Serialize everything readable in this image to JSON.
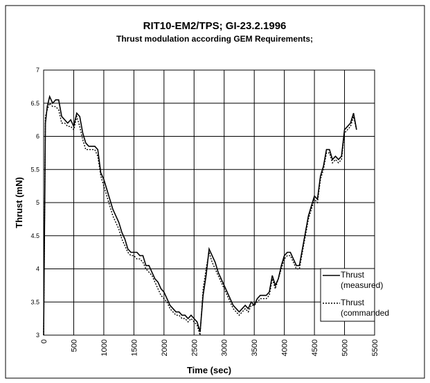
{
  "chart_data": {
    "type": "line",
    "title": "RIT10-EM2/TPS; GI-23.2.1996",
    "subtitle": "Thrust modulation according GEM Requirements;",
    "x_label": "Time (sec)",
    "y_label": "Thrust (mN)",
    "xlim": [
      0,
      5500
    ],
    "xticks": [
      0,
      500,
      1000,
      1500,
      2000,
      2500,
      3000,
      3500,
      4000,
      4500,
      5000,
      5500
    ],
    "ylim": [
      3,
      7
    ],
    "yticks": [
      3,
      3.5,
      4,
      4.5,
      5,
      5.5,
      6,
      6.5,
      7
    ],
    "grid": true,
    "legend": "lower right",
    "x": [
      0,
      30,
      60,
      100,
      150,
      200,
      250,
      300,
      350,
      400,
      450,
      500,
      550,
      600,
      650,
      700,
      750,
      800,
      850,
      900,
      950,
      1000,
      1050,
      1100,
      1150,
      1200,
      1250,
      1300,
      1350,
      1400,
      1450,
      1500,
      1550,
      1600,
      1650,
      1700,
      1750,
      1800,
      1850,
      1900,
      1950,
      2000,
      2050,
      2100,
      2150,
      2200,
      2250,
      2300,
      2350,
      2400,
      2450,
      2500,
      2550,
      2600,
      2650,
      2700,
      2750,
      2800,
      2850,
      2900,
      2950,
      3000,
      3050,
      3100,
      3150,
      3200,
      3250,
      3300,
      3350,
      3400,
      3450,
      3500,
      3550,
      3600,
      3650,
      3700,
      3750,
      3800,
      3850,
      3900,
      3950,
      4000,
      4050,
      4100,
      4150,
      4200,
      4250,
      4300,
      4350,
      4400,
      4450,
      4500,
      4550,
      4600,
      4650,
      4700,
      4750,
      4800,
      4850,
      4900,
      4950,
      5000,
      5050,
      5100,
      5150,
      5200
    ],
    "series": [
      {
        "name": "Thrust (measured)",
        "color": "#000000",
        "line_style": "solid",
        "values": [
          3.0,
          6.2,
          6.45,
          6.6,
          6.5,
          6.55,
          6.55,
          6.3,
          6.25,
          6.2,
          6.25,
          6.15,
          6.35,
          6.3,
          6.05,
          5.9,
          5.85,
          5.85,
          5.85,
          5.8,
          5.45,
          5.35,
          5.2,
          5.05,
          4.9,
          4.8,
          4.7,
          4.55,
          4.45,
          4.3,
          4.25,
          4.25,
          4.25,
          4.2,
          4.2,
          4.05,
          4.05,
          3.95,
          3.85,
          3.8,
          3.7,
          3.65,
          3.55,
          3.45,
          3.4,
          3.35,
          3.35,
          3.3,
          3.3,
          3.25,
          3.3,
          3.25,
          3.2,
          3.05,
          3.6,
          3.9,
          4.3,
          4.2,
          4.1,
          3.95,
          3.85,
          3.75,
          3.65,
          3.55,
          3.45,
          3.4,
          3.35,
          3.4,
          3.45,
          3.4,
          3.5,
          3.45,
          3.55,
          3.6,
          3.6,
          3.6,
          3.65,
          3.9,
          3.75,
          3.85,
          4.05,
          4.2,
          4.25,
          4.25,
          4.15,
          4.05,
          4.05,
          4.3,
          4.55,
          4.8,
          4.95,
          5.1,
          5.05,
          5.4,
          5.55,
          5.8,
          5.8,
          5.65,
          5.7,
          5.65,
          5.7,
          6.1,
          6.15,
          6.2,
          6.35,
          6.1
        ]
      },
      {
        "name": "Thrust (commanded",
        "color": "#000000",
        "line_style": "dotted",
        "values": [
          3.0,
          6.3,
          6.4,
          6.5,
          6.45,
          6.45,
          6.4,
          6.2,
          6.2,
          6.15,
          6.15,
          6.1,
          6.3,
          6.15,
          5.95,
          5.8,
          5.8,
          5.8,
          5.8,
          5.7,
          5.4,
          5.25,
          5.1,
          4.95,
          4.8,
          4.7,
          4.6,
          4.45,
          4.35,
          4.25,
          4.2,
          4.2,
          4.15,
          4.15,
          4.1,
          4.0,
          3.95,
          3.9,
          3.8,
          3.7,
          3.6,
          3.55,
          3.5,
          3.4,
          3.35,
          3.3,
          3.3,
          3.25,
          3.25,
          3.2,
          3.25,
          3.2,
          3.15,
          3.0,
          3.7,
          4.0,
          4.25,
          4.1,
          4.0,
          3.9,
          3.8,
          3.7,
          3.6,
          3.5,
          3.4,
          3.35,
          3.3,
          3.35,
          3.4,
          3.35,
          3.45,
          3.45,
          3.5,
          3.55,
          3.55,
          3.55,
          3.6,
          3.85,
          3.7,
          3.85,
          4.0,
          4.15,
          4.2,
          4.2,
          4.1,
          4.0,
          4.0,
          4.25,
          4.5,
          4.75,
          4.9,
          5.05,
          5.0,
          5.35,
          5.5,
          5.75,
          5.75,
          5.6,
          5.65,
          5.6,
          5.65,
          6.05,
          6.1,
          6.15,
          6.3,
          6.1
        ]
      }
    ]
  }
}
